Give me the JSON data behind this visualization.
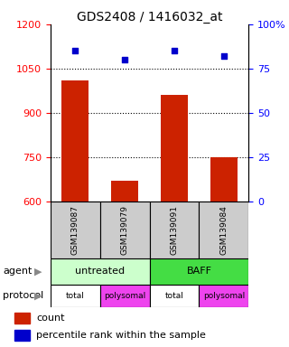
{
  "title": "GDS2408 / 1416032_at",
  "samples": [
    "GSM139087",
    "GSM139079",
    "GSM139091",
    "GSM139084"
  ],
  "bar_values": [
    1010,
    670,
    960,
    750
  ],
  "percentile_values": [
    85,
    80,
    85,
    82
  ],
  "ylim_left": [
    600,
    1200
  ],
  "ylim_right": [
    0,
    100
  ],
  "yticks_left": [
    600,
    750,
    900,
    1050,
    1200
  ],
  "yticks_right": [
    0,
    25,
    50,
    75,
    100
  ],
  "bar_color": "#cc2200",
  "dot_color": "#0000cc",
  "bar_width": 0.55,
  "agent_labels": [
    [
      "untreated",
      0,
      1
    ],
    [
      "BAFF",
      2,
      3
    ]
  ],
  "protocol_labels": [
    "total",
    "polysomal",
    "total",
    "polysomal"
  ],
  "agent_colors": [
    "#ccffcc",
    "#44dd44"
  ],
  "protocol_colors": [
    "#ffffff",
    "#ee44ee",
    "#ffffff",
    "#ee44ee"
  ],
  "label_row_agent": "agent",
  "label_row_protocol": "protocol",
  "legend_count_label": "count",
  "legend_pct_label": "percentile rank within the sample",
  "title_fontsize": 10,
  "tick_label_fontsize": 8,
  "annot_fontsize": 7
}
